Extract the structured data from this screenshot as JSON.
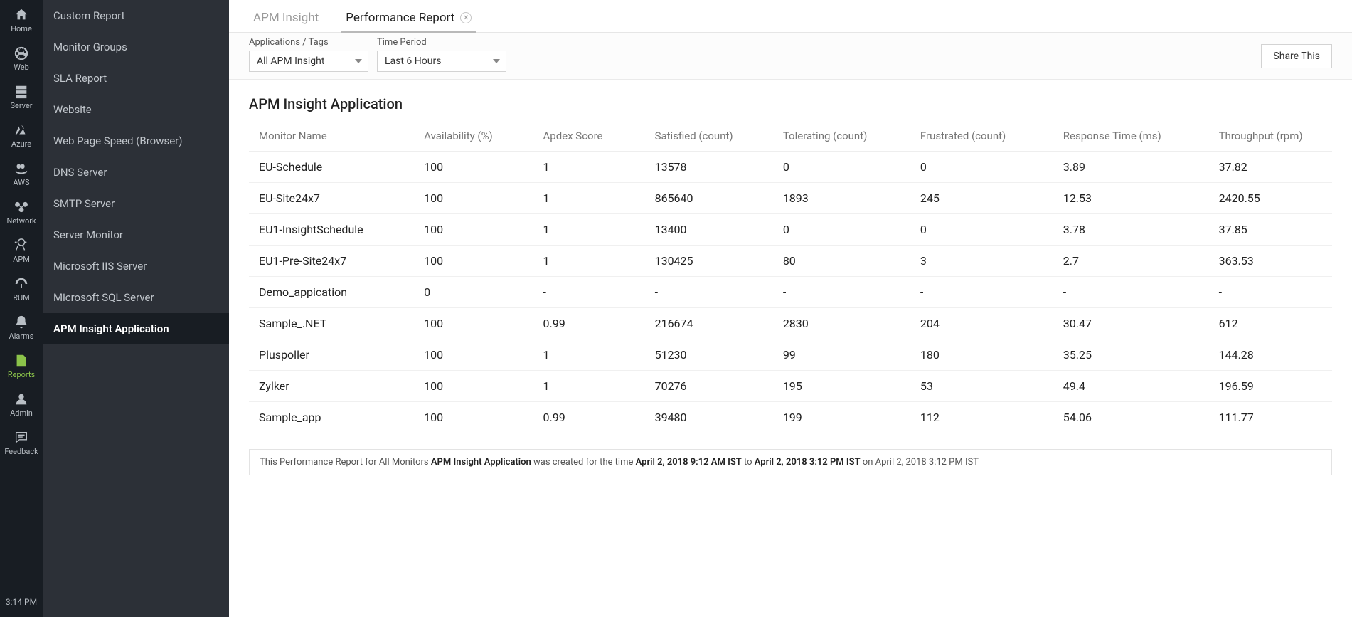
{
  "colors": {
    "rail_bg": "#181d23",
    "side2_bg": "#2c3037",
    "accent": "#8bc34a",
    "border": "#e6e6e6",
    "text": "#222222",
    "muted": "#9a9a9a"
  },
  "rail": {
    "items": [
      {
        "key": "home",
        "label": "Home"
      },
      {
        "key": "web",
        "label": "Web"
      },
      {
        "key": "server",
        "label": "Server"
      },
      {
        "key": "azure",
        "label": "Azure"
      },
      {
        "key": "aws",
        "label": "AWS"
      },
      {
        "key": "network",
        "label": "Network"
      },
      {
        "key": "apm",
        "label": "APM"
      },
      {
        "key": "rum",
        "label": "RUM"
      },
      {
        "key": "alarms",
        "label": "Alarms"
      },
      {
        "key": "reports",
        "label": "Reports"
      },
      {
        "key": "admin",
        "label": "Admin"
      },
      {
        "key": "feedback",
        "label": "Feedback"
      }
    ],
    "active": "reports",
    "time": "3:14 PM"
  },
  "side2": {
    "items": [
      "Custom Report",
      "Monitor Groups",
      "SLA Report",
      "Website",
      "Web Page Speed (Browser)",
      "DNS Server",
      "SMTP Server",
      "Server Monitor",
      "Microsoft IIS Server",
      "Microsoft SQL Server",
      "APM Insight Application"
    ],
    "active_index": 10
  },
  "tabs": [
    {
      "label": "APM Insight",
      "active": false,
      "closable": false
    },
    {
      "label": "Performance Report",
      "active": true,
      "closable": true
    }
  ],
  "filters": {
    "app_label": "Applications / Tags",
    "app_value": "All APM Insight",
    "period_label": "Time Period",
    "period_value": "Last 6 Hours",
    "share_label": "Share This"
  },
  "table": {
    "title": "APM Insight Application",
    "columns": [
      "Monitor Name",
      "Availability (%)",
      "Apdex Score",
      "Satisfied (count)",
      "Tolerating (count)",
      "Frustrated (count)",
      "Response Time (ms)",
      "Throughput (rpm)"
    ],
    "rows": [
      [
        "EU-Schedule",
        "100",
        "1",
        "13578",
        "0",
        "0",
        "3.89",
        "37.82"
      ],
      [
        "EU-Site24x7",
        "100",
        "1",
        "865640",
        "1893",
        "245",
        "12.53",
        "2420.55"
      ],
      [
        "EU1-InsightSchedule",
        "100",
        "1",
        "13400",
        "0",
        "0",
        "3.78",
        "37.85"
      ],
      [
        "EU1-Pre-Site24x7",
        "100",
        "1",
        "130425",
        "80",
        "3",
        "2.7",
        "363.53"
      ],
      [
        "Demo_appication",
        "0",
        "-",
        "-",
        "-",
        "-",
        "-",
        "-"
      ],
      [
        "Sample_.NET",
        "100",
        "0.99",
        "216674",
        "2830",
        "204",
        "30.47",
        "612"
      ],
      [
        "Pluspoller",
        "100",
        "1",
        "51230",
        "99",
        "180",
        "35.25",
        "144.28"
      ],
      [
        "Zylker",
        "100",
        "1",
        "70276",
        "195",
        "53",
        "49.4",
        "196.59"
      ],
      [
        "Sample_app",
        "100",
        "0.99",
        "39480",
        "199",
        "112",
        "54.06",
        "111.77"
      ]
    ]
  },
  "footnote": {
    "pre": "This Performance Report for All Monitors ",
    "app": "APM Insight Application",
    "mid": " was created for the time ",
    "from": "April 2, 2018 9:12 AM IST",
    "to_word": " to ",
    "to": "April 2, 2018 3:12 PM IST",
    "post": " on April 2, 2018 3:12 PM IST"
  }
}
